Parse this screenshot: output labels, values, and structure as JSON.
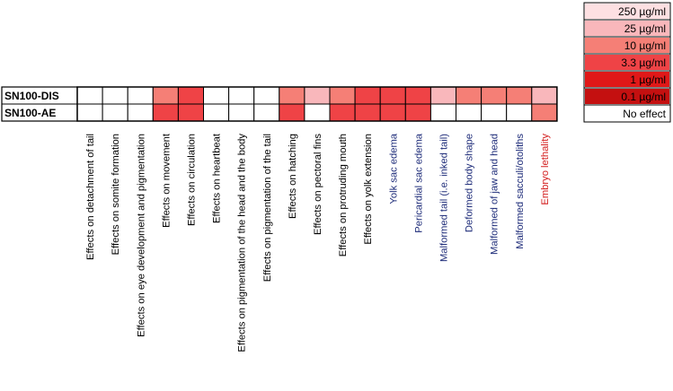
{
  "chart_data": {
    "type": "heatmap",
    "title": "",
    "rows": [
      "SN100-DIS",
      "SN100-AE"
    ],
    "columns": [
      {
        "label": "Effects on detachment of tail",
        "color": "#000000"
      },
      {
        "label": "Effects on somite formation",
        "color": "#000000"
      },
      {
        "label": "Effects on eye development and pigmentation",
        "color": "#000000"
      },
      {
        "label": "Effects on movement",
        "color": "#000000"
      },
      {
        "label": "Effects on circulation",
        "color": "#000000"
      },
      {
        "label": "Effects on heartbeat",
        "color": "#000000"
      },
      {
        "label": "Effects on pigmentation of the head and the body",
        "color": "#000000"
      },
      {
        "label": "Effects on pigmentation of the tail",
        "color": "#000000"
      },
      {
        "label": "Effects on hatching",
        "color": "#000000"
      },
      {
        "label": "Effects on pectoral fins",
        "color": "#000000"
      },
      {
        "label": "Effects on protruding  mouth",
        "color": "#000000"
      },
      {
        "label": "Effects on yolk extension",
        "color": "#000000"
      },
      {
        "label": "Yolk sac edema",
        "color": "#1f2d7a"
      },
      {
        "label": "Pericardial sac edema",
        "color": "#1f2d7a"
      },
      {
        "label": "Malformed tail (i.e. inked tail)",
        "color": "#1f2d7a"
      },
      {
        "label": "Deformed body shape",
        "color": "#1f2d7a"
      },
      {
        "label": "Malformed of jaw and head",
        "color": "#1f2d7a"
      },
      {
        "label": "Malformed sacculi/otoliths",
        "color": "#1f2d7a"
      },
      {
        "label": "Embryo lethality",
        "color": "#d42020"
      }
    ],
    "values": [
      [
        "No effect",
        "No effect",
        "No effect",
        "10 µg/ml",
        "3.3 µg/ml",
        "No effect",
        "No effect",
        "No effect",
        "10 µg/ml",
        "25 µg/ml",
        "10 µg/ml",
        "3.3 µg/ml",
        "3.3 µg/ml",
        "3.3 µg/ml",
        "25 µg/ml",
        "10 µg/ml",
        "10 µg/ml",
        "10 µg/ml",
        "25 µg/ml"
      ],
      [
        "No effect",
        "No effect",
        "No effect",
        "3.3 µg/ml",
        "3.3 µg/ml",
        "No effect",
        "No effect",
        "No effect",
        "3.3 µg/ml",
        "No effect",
        "3.3 µg/ml",
        "3.3 µg/ml",
        "3.3 µg/ml",
        "3.3 µg/ml",
        "No effect",
        "No effect",
        "No effect",
        "No effect",
        "10 µg/ml"
      ]
    ],
    "legend": {
      "position": "top-right",
      "items": [
        {
          "label": "250 µg/ml",
          "color": "#fde0e2"
        },
        {
          "label": "25 µg/ml",
          "color": "#f9b7bb"
        },
        {
          "label": "10 µg/ml",
          "color": "#f57f76"
        },
        {
          "label": "3.3 µg/ml",
          "color": "#ef4346"
        },
        {
          "label": "1 µg/ml",
          "color": "#e01818"
        },
        {
          "label": "0.1 µg/ml",
          "color": "#c41010"
        },
        {
          "label": "No effect",
          "color": "#ffffff"
        }
      ]
    }
  }
}
